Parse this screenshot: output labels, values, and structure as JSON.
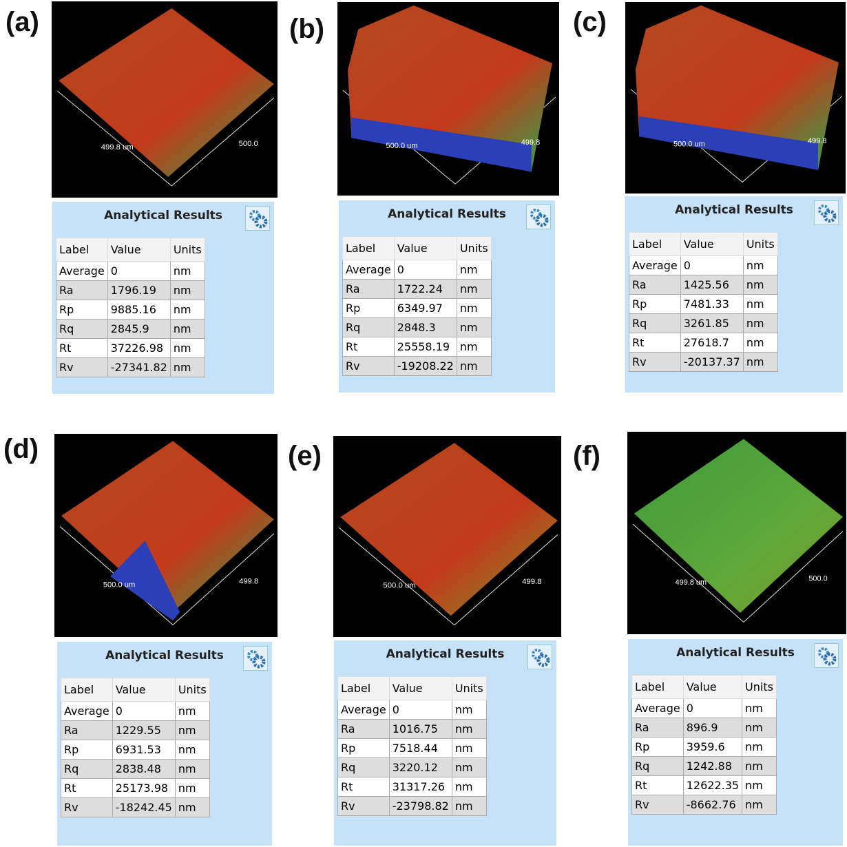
{
  "panels": [
    {
      "label": "(a)",
      "image": {
        "axis_labels": [
          "499.8 um",
          "500.0"
        ]
      },
      "results": {
        "title": "Analytical Results",
        "columns": [
          "Label",
          "Value",
          "Units"
        ],
        "rows": [
          [
            "Average",
            0,
            "nm"
          ],
          [
            "Ra",
            1796.19,
            "nm"
          ],
          [
            "Rp",
            9885.16,
            "nm"
          ],
          [
            "Rq",
            2845.9,
            "nm"
          ],
          [
            "Rt",
            37226.98,
            "nm"
          ],
          [
            "Rv",
            -27341.82,
            "nm"
          ]
        ]
      }
    },
    {
      "label": "(b)",
      "image": {
        "axis_labels": [
          "500.0 um",
          "499.8"
        ]
      },
      "results": {
        "title": "Analytical Results",
        "columns": [
          "Label",
          "Value",
          "Units"
        ],
        "rows": [
          [
            "Average",
            0,
            "nm"
          ],
          [
            "Ra",
            1722.24,
            "nm"
          ],
          [
            "Rp",
            6349.97,
            "nm"
          ],
          [
            "Rq",
            2848.3,
            "nm"
          ],
          [
            "Rt",
            25558.19,
            "nm"
          ],
          [
            "Rv",
            -19208.22,
            "nm"
          ]
        ]
      }
    },
    {
      "label": "(c)",
      "image": {
        "axis_labels": [
          "500.0 um",
          "499.8"
        ]
      },
      "results": {
        "title": "Analytical Results",
        "columns": [
          "Label",
          "Value",
          "Units"
        ],
        "rows": [
          [
            "Average",
            0,
            "nm"
          ],
          [
            "Ra",
            1425.56,
            "nm"
          ],
          [
            "Rp",
            7481.33,
            "nm"
          ],
          [
            "Rq",
            3261.85,
            "nm"
          ],
          [
            "Rt",
            27618.7,
            "nm"
          ],
          [
            "Rv",
            -20137.37,
            "nm"
          ]
        ]
      }
    },
    {
      "label": "(d)",
      "image": {
        "axis_labels": [
          "500.0 um",
          "499.8"
        ]
      },
      "results": {
        "title": "Analytical Results",
        "columns": [
          "Label",
          "Value",
          "Units"
        ],
        "rows": [
          [
            "Average",
            0,
            "nm"
          ],
          [
            "Ra",
            1229.55,
            "nm"
          ],
          [
            "Rp",
            6931.53,
            "nm"
          ],
          [
            "Rq",
            2838.48,
            "nm"
          ],
          [
            "Rt",
            25173.98,
            "nm"
          ],
          [
            "Rv",
            -18242.45,
            "nm"
          ]
        ]
      }
    },
    {
      "label": "(e)",
      "image": {
        "axis_labels": [
          "500.0 um",
          "499.8"
        ]
      },
      "results": {
        "title": "Analytical Results",
        "columns": [
          "Label",
          "Value",
          "Units"
        ],
        "rows": [
          [
            "Average",
            0,
            "nm"
          ],
          [
            "Ra",
            1016.75,
            "nm"
          ],
          [
            "Rp",
            7518.44,
            "nm"
          ],
          [
            "Rq",
            3220.12,
            "nm"
          ],
          [
            "Rt",
            31317.26,
            "nm"
          ],
          [
            "Rv",
            -23798.82,
            "nm"
          ]
        ]
      }
    },
    {
      "label": "(f)",
      "image": {
        "axis_labels": [
          "499.8 um",
          "500.0"
        ]
      },
      "results": {
        "title": "Analytical Results",
        "columns": [
          "Label",
          "Value",
          "Units"
        ],
        "rows": [
          [
            "Average",
            0,
            "nm"
          ],
          [
            "Ra",
            896.9,
            "nm"
          ],
          [
            "Rp",
            3959.6,
            "nm"
          ],
          [
            "Rq",
            1242.88,
            "nm"
          ],
          [
            "Rt",
            12622.35,
            "nm"
          ],
          [
            "Rv",
            -8662.76,
            "nm"
          ]
        ]
      }
    }
  ]
}
